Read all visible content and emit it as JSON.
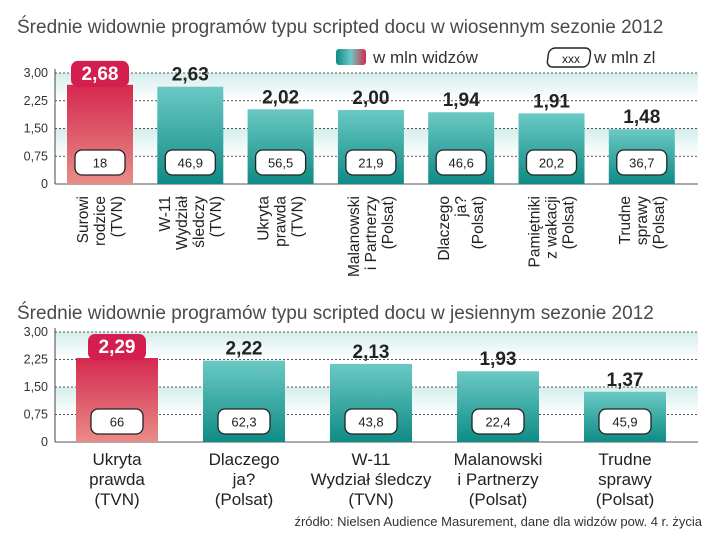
{
  "legend": {
    "viewers_label": "w mln widzów",
    "money_box": "xxx",
    "money_label": "w mln zl"
  },
  "colors": {
    "bar_teal_top": "#6bc9c4",
    "bar_teal_bottom": "#0f8b85",
    "bar_red_top": "#d5284f",
    "bar_red_bottom": "#e88d87",
    "highlight": "#d31e4f",
    "band": "#bfe4e1"
  },
  "source": "źródło: Nielsen Audience Masurement, dane dla widzów pow. 4 r. życia",
  "chart_data": [
    {
      "type": "bar",
      "title": "Średnie widownie programów typu scripted docu w wiosennym sezonie 2012",
      "xlabel": "",
      "ylabel": "w mln widzów",
      "ylim": [
        0,
        3
      ],
      "yticks": [
        "0",
        "0,75",
        "1,50",
        "2,25",
        "3,00"
      ],
      "categories": [
        [
          "Surowi",
          "rodzice",
          "(TVN)"
        ],
        [
          "W-11",
          "Wydział",
          "śledczy",
          "(TVN)"
        ],
        [
          "Ukryta",
          "prawda",
          "(TVN)"
        ],
        [
          "Malanowski",
          "i Partnerzy",
          "(Polsat)"
        ],
        [
          "Dlaczego",
          "ja?",
          "(Polsat)"
        ],
        [
          "Pamiętniki",
          "z wakacji",
          "(Polsat)"
        ],
        [
          "Trudne",
          "sprawy",
          "(Polsat)"
        ]
      ],
      "values": [
        2.68,
        2.63,
        2.02,
        2.0,
        1.94,
        1.91,
        1.48
      ],
      "value_labels": [
        "2,68",
        "2,63",
        "2,02",
        "2,00",
        "1,94",
        "1,91",
        "1,48"
      ],
      "money": [
        "18",
        "46,9",
        "56,5",
        "21,9",
        "46,6",
        "20,2",
        "36,7"
      ],
      "highlight_index": 0
    },
    {
      "type": "bar",
      "title": "Średnie widownie programów typu scripted docu w jesiennym sezonie 2012",
      "xlabel": "",
      "ylabel": "w mln widzów",
      "ylim": [
        0,
        3
      ],
      "yticks": [
        "0",
        "0,75",
        "1,50",
        "2,25",
        "3,00"
      ],
      "categories": [
        [
          "Ukryta",
          "prawda",
          "(TVN)"
        ],
        [
          "Dlaczego",
          "ja?",
          "(Polsat)"
        ],
        [
          "W-11",
          "Wydział śledczy",
          "(TVN)"
        ],
        [
          "Malanowski",
          "i Partnerzy",
          "(Polsat)"
        ],
        [
          "Trudne",
          "sprawy",
          "(Polsat)"
        ]
      ],
      "values": [
        2.29,
        2.22,
        2.13,
        1.93,
        1.37
      ],
      "value_labels": [
        "2,29",
        "2,22",
        "2,13",
        "1,93",
        "1,37"
      ],
      "money": [
        "66",
        "62,3",
        "43,8",
        "22,4",
        "45,9"
      ],
      "highlight_index": 0
    }
  ]
}
